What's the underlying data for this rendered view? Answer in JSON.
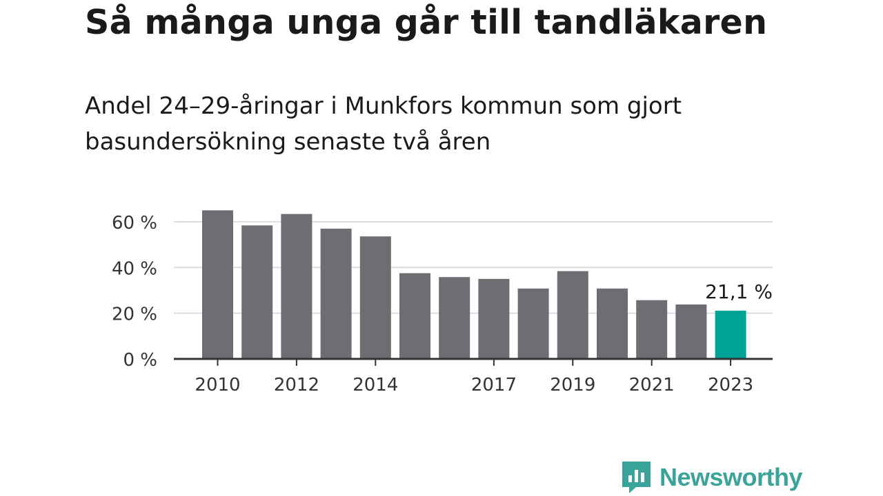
{
  "title": "Så många unga går till tandläkaren",
  "subtitle": "Andel 24–29-åringar i Munkfors kommun som gjort basundersökning senaste två åren",
  "brand": {
    "name": "Newsworthy",
    "icon": "newsworthy-logo-icon",
    "color": "#3aa39a"
  },
  "chart_data": {
    "type": "bar",
    "categories": [
      "2010",
      "2011",
      "2012",
      "2013",
      "2014",
      "2015",
      "2016",
      "2017",
      "2018",
      "2019",
      "2020",
      "2021",
      "2022",
      "2023"
    ],
    "values": [
      65.0,
      58.4,
      63.4,
      57.0,
      53.6,
      37.5,
      35.8,
      35.0,
      30.8,
      38.4,
      30.8,
      25.7,
      23.8,
      21.1
    ],
    "x_tick_labels": [
      "2010",
      "2012",
      "2014",
      "2017",
      "2019",
      "2021",
      "2023"
    ],
    "y_ticks": [
      0,
      20,
      40,
      60
    ],
    "y_tick_labels": [
      "0 %",
      "20 %",
      "40 %",
      "60 %"
    ],
    "ylim": [
      0,
      66
    ],
    "grid": true,
    "highlight": {
      "category": "2023",
      "label": "21,1 %"
    },
    "colors": {
      "bar": "#6e6d73",
      "highlight": "#00a398",
      "grid": "#dddddd",
      "axis": "#333333"
    }
  }
}
